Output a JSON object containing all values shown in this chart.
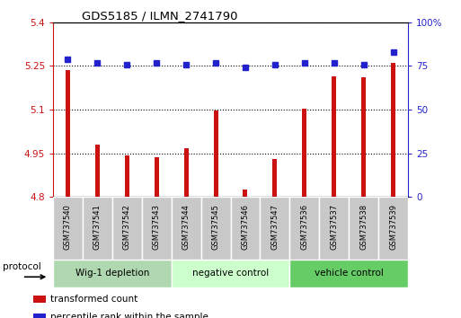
{
  "title": "GDS5185 / ILMN_2741790",
  "samples": [
    "GSM737540",
    "GSM737541",
    "GSM737542",
    "GSM737543",
    "GSM737544",
    "GSM737545",
    "GSM737546",
    "GSM737547",
    "GSM737536",
    "GSM737537",
    "GSM737538",
    "GSM737539"
  ],
  "bar_values": [
    5.235,
    4.98,
    4.942,
    4.938,
    4.968,
    5.098,
    4.825,
    4.932,
    5.102,
    5.215,
    5.21,
    5.262
  ],
  "dot_values": [
    79,
    77,
    76,
    77,
    76,
    77,
    74,
    76,
    77,
    77,
    76,
    83
  ],
  "ylim_left": [
    4.8,
    5.4
  ],
  "ylim_right": [
    0,
    100
  ],
  "yticks_left": [
    4.8,
    4.95,
    5.1,
    5.25,
    5.4
  ],
  "yticks_right": [
    0,
    25,
    50,
    75,
    100
  ],
  "ytick_labels_left": [
    "4.8",
    "4.95",
    "5.1",
    "5.25",
    "5.4"
  ],
  "ytick_labels_right": [
    "0",
    "25",
    "50",
    "75",
    "100%"
  ],
  "bar_color": "#cc1111",
  "dot_color": "#2222cc",
  "bar_width": 0.15,
  "groups": [
    {
      "label": "Wig-1 depletion",
      "start": 0,
      "end": 4,
      "color": "#b0d8b0"
    },
    {
      "label": "negative control",
      "start": 4,
      "end": 8,
      "color": "#ccffcc"
    },
    {
      "label": "vehicle control",
      "start": 8,
      "end": 12,
      "color": "#66cc66"
    }
  ],
  "sample_bg_color": "#c8c8c8",
  "protocol_label": "protocol",
  "legend_entries": [
    {
      "label": "transformed count",
      "color": "#cc1111"
    },
    {
      "label": "percentile rank within the sample",
      "color": "#2222cc"
    }
  ],
  "grid_color": "#000000",
  "left_tick_color": "#cc1111",
  "right_tick_color": "#2222cc"
}
